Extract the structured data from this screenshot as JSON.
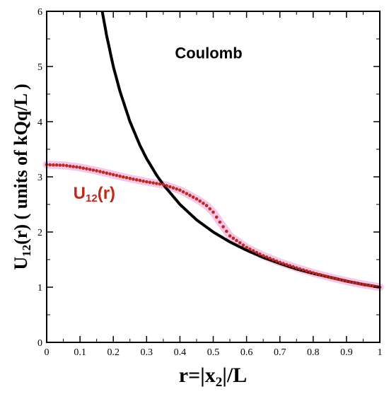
{
  "chart_data": {
    "type": "line",
    "xlabel": {
      "prefix": "r=|x",
      "sub": "2",
      "suffix": "|/L"
    },
    "ylabel": {
      "prefix": "U",
      "sub": "12",
      "suffix": "(r) ( units of kQq/L )"
    },
    "xlim": [
      0,
      1
    ],
    "ylim": [
      0,
      6
    ],
    "x_ticks": [
      "0",
      "0.1",
      "0.2",
      "0.3",
      "0.4",
      "0.5",
      "0.6",
      "0.7",
      "0.8",
      "0.9",
      "1"
    ],
    "y_ticks": [
      "0",
      "1",
      "2",
      "3",
      "4",
      "5",
      "6"
    ],
    "grid": false,
    "legend": "none",
    "series": [
      {
        "name": "Coulomb",
        "style": "solid-line",
        "color": "#000000",
        "x": [
          0.167,
          0.18,
          0.2,
          0.22,
          0.25,
          0.28,
          0.3,
          0.33,
          0.35,
          0.4,
          0.45,
          0.5,
          0.55,
          0.6,
          0.65,
          0.7,
          0.75,
          0.8,
          0.85,
          0.9,
          0.95,
          1.0
        ],
        "y": [
          5.99,
          5.56,
          5.0,
          4.55,
          4.0,
          3.57,
          3.33,
          3.03,
          2.86,
          2.5,
          2.22,
          2.0,
          1.82,
          1.67,
          1.54,
          1.43,
          1.33,
          1.25,
          1.18,
          1.11,
          1.05,
          1.0
        ]
      },
      {
        "name": "U12(r)",
        "style": "dots-with-band",
        "color": "#c0281c",
        "band_color": "#f4c6ea",
        "x": [
          0,
          0.05,
          0.1,
          0.15,
          0.2,
          0.25,
          0.3,
          0.35,
          0.4,
          0.45,
          0.48,
          0.5,
          0.52,
          0.55,
          0.6,
          0.65,
          0.7,
          0.75,
          0.8,
          0.85,
          0.9,
          0.95,
          1.0
        ],
        "y": [
          3.22,
          3.21,
          3.17,
          3.11,
          3.04,
          2.97,
          2.91,
          2.86,
          2.76,
          2.6,
          2.48,
          2.36,
          2.18,
          1.93,
          1.72,
          1.57,
          1.45,
          1.35,
          1.26,
          1.18,
          1.11,
          1.05,
          1.0
        ]
      }
    ],
    "annotations": [
      {
        "text": "Coulomb",
        "x": 0.385,
        "y": 5.15,
        "color": "#000000"
      },
      {
        "label_prefix": "U",
        "label_sub": "12",
        "label_suffix": "(r)",
        "x": 0.08,
        "y": 2.6,
        "color": "#c0281c"
      }
    ]
  }
}
